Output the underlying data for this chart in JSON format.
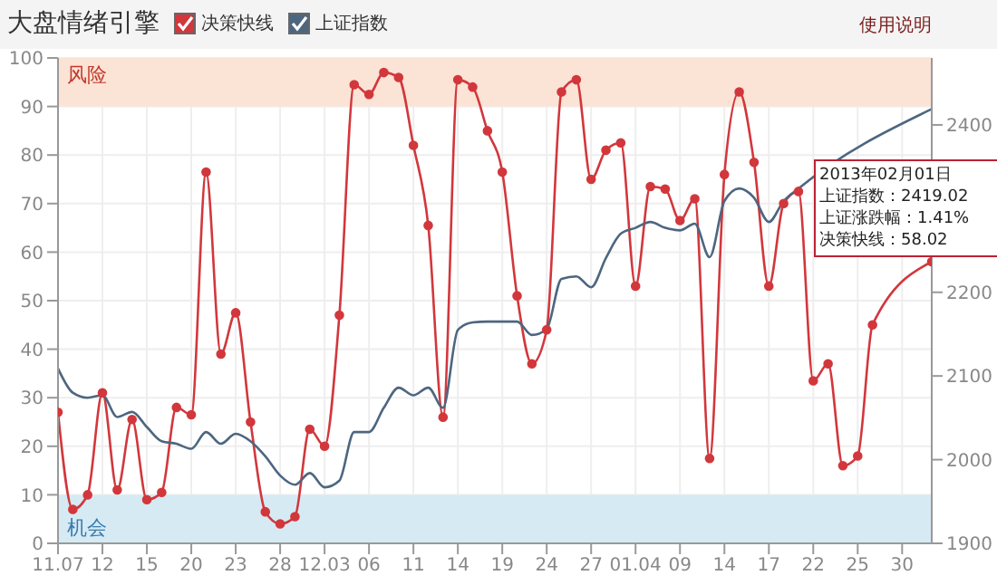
{
  "chart_data": {
    "type": "line",
    "title": "大盘情绪引擎",
    "categories": [
      "11.07",
      null,
      null,
      "12",
      null,
      null,
      "15",
      null,
      null,
      "20",
      null,
      null,
      "23",
      null,
      null,
      "28",
      null,
      null,
      "12.03",
      null,
      null,
      "06",
      null,
      null,
      "11",
      null,
      null,
      "14",
      null,
      null,
      "19",
      null,
      null,
      "24",
      null,
      null,
      "27",
      null,
      null,
      "01.04",
      null,
      null,
      "09",
      null,
      null,
      "14",
      null,
      null,
      "17",
      null,
      null,
      "22",
      null,
      null,
      "25",
      null,
      null,
      "30",
      null,
      null
    ],
    "series": [
      {
        "name": "决策快线",
        "color": "#d2373c",
        "marker": "circle",
        "values": [
          27,
          7,
          10,
          31,
          11,
          25.5,
          9,
          10.5,
          28,
          26.5,
          76.5,
          39,
          47.5,
          25,
          6.5,
          4,
          5.5,
          23.5,
          20,
          47,
          94.5,
          92.5,
          97,
          96,
          82,
          65.5,
          26,
          95.5,
          94,
          85,
          76.5,
          51,
          37,
          44,
          93,
          95.5,
          75,
          81,
          82.5,
          53,
          73.5,
          73,
          66.5,
          71,
          17.5,
          76,
          93,
          78.5,
          53,
          70,
          72.5,
          33.5,
          37,
          16,
          18,
          45,
          null,
          null,
          null,
          58.02
        ]
      },
      {
        "name": "上证指数",
        "color": "#4d6680",
        "axis": "y2",
        "marker": "none",
        "values": [
          2109,
          2080,
          2074,
          2077,
          2051,
          2057,
          2039,
          2022,
          2019,
          2013,
          2033,
          2019,
          2031,
          2022,
          2004,
          1981,
          1970,
          1984,
          1967,
          1975,
          2033,
          2033,
          2062,
          2086,
          2077,
          2086,
          2062,
          2155,
          2164,
          2165,
          2165,
          2165,
          2149,
          2156,
          2216,
          2219,
          2206,
          2241,
          2270,
          2277,
          2284,
          2277,
          2274,
          2282,
          2242,
          2309,
          2324,
          2313,
          2284,
          2309,
          2324,
          null,
          null,
          null,
          null,
          null,
          null,
          null,
          null,
          2419.02
        ]
      }
    ],
    "ylim": [
      0,
      100
    ],
    "yticks": [
      0,
      10,
      20,
      30,
      40,
      50,
      60,
      70,
      80,
      90,
      100
    ],
    "y2lim": [
      1900,
      2480
    ],
    "y2ticks": [
      1900,
      2000,
      2100,
      2200,
      2400
    ],
    "bands": [
      {
        "axis": "y",
        "from": 90,
        "to": 100,
        "label": "风险",
        "color": "#fbe3d6"
      },
      {
        "axis": "y",
        "from": 0,
        "to": 10,
        "label": "机会",
        "color": "#d6eaf3"
      }
    ],
    "annotations": [
      "使用说明",
      "2013年02月01日",
      "上证指数：2419.02",
      "上证涨跌幅：1.41%",
      "决策快线：58.02"
    ],
    "grid": true,
    "legend": "top left"
  }
}
